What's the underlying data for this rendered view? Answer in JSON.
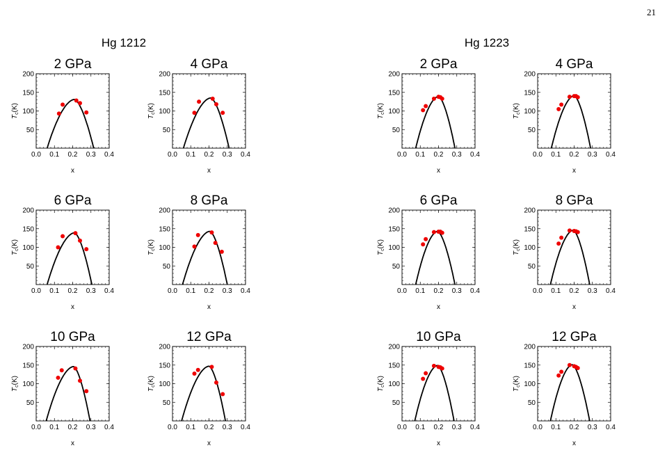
{
  "page_number": "21",
  "groups": [
    {
      "title": "Hg 1212"
    },
    {
      "title": "Hg 1223"
    }
  ],
  "chart_data": [
    {
      "group": "Hg 1212",
      "type": "scatter",
      "title": "2 GPa",
      "xlabel": "x",
      "ylabel": "T_c(K)",
      "xlim": [
        0,
        0.4
      ],
      "ylim": [
        0,
        200
      ],
      "xticks": [
        0.0,
        0.1,
        0.2,
        0.3,
        0.4
      ],
      "yticks": [
        50,
        100,
        150,
        200
      ],
      "points": {
        "x": [
          0.125,
          0.145,
          0.22,
          0.24,
          0.275
        ],
        "y": [
          93,
          117,
          128,
          121,
          96
        ]
      },
      "curve": {
        "x0": 0.06,
        "xpeak": 0.21,
        "x1": 0.315,
        "ymax": 131
      }
    },
    {
      "group": "Hg 1212",
      "type": "scatter",
      "title": "4 GPa",
      "xlabel": "x",
      "ylabel": "T_c(K)",
      "xlim": [
        0,
        0.4
      ],
      "ylim": [
        0,
        200
      ],
      "xticks": [
        0.0,
        0.1,
        0.2,
        0.3,
        0.4
      ],
      "yticks": [
        50,
        100,
        150,
        200
      ],
      "points": {
        "x": [
          0.12,
          0.145,
          0.22,
          0.24,
          0.275
        ],
        "y": [
          95,
          125,
          133,
          118,
          95
        ]
      },
      "curve": {
        "x0": 0.06,
        "xpeak": 0.21,
        "x1": 0.31,
        "ymax": 135
      }
    },
    {
      "group": "Hg 1212",
      "type": "scatter",
      "title": "6 GPa",
      "xlabel": "x",
      "ylabel": "T_c(K)",
      "xlim": [
        0,
        0.4
      ],
      "ylim": [
        0,
        200
      ],
      "xticks": [
        0.0,
        0.1,
        0.2,
        0.3,
        0.4
      ],
      "yticks": [
        50,
        100,
        150,
        200
      ],
      "points": {
        "x": [
          0.12,
          0.145,
          0.215,
          0.24,
          0.275
        ],
        "y": [
          100,
          130,
          138,
          118,
          95
        ]
      },
      "curve": {
        "x0": 0.06,
        "xpeak": 0.21,
        "x1": 0.305,
        "ymax": 139
      }
    },
    {
      "group": "Hg 1212",
      "type": "scatter",
      "title": "8 GPa",
      "xlabel": "x",
      "ylabel": "T_c(K)",
      "xlim": [
        0,
        0.4
      ],
      "ylim": [
        0,
        200
      ],
      "xticks": [
        0.0,
        0.1,
        0.2,
        0.3,
        0.4
      ],
      "yticks": [
        50,
        100,
        150,
        200
      ],
      "points": {
        "x": [
          0.12,
          0.14,
          0.215,
          0.235,
          0.27
        ],
        "y": [
          102,
          133,
          140,
          112,
          88
        ]
      },
      "curve": {
        "x0": 0.055,
        "xpeak": 0.205,
        "x1": 0.3,
        "ymax": 143
      }
    },
    {
      "group": "Hg 1212",
      "type": "scatter",
      "title": "10 GPa",
      "xlabel": "x",
      "ylabel": "T_c(K)",
      "xlim": [
        0,
        0.4
      ],
      "ylim": [
        0,
        200
      ],
      "xticks": [
        0.0,
        0.1,
        0.2,
        0.3,
        0.4
      ],
      "yticks": [
        50,
        100,
        150,
        200
      ],
      "points": {
        "x": [
          0.12,
          0.14,
          0.215,
          0.24,
          0.275
        ],
        "y": [
          116,
          136,
          141,
          108,
          80
        ]
      },
      "curve": {
        "x0": 0.055,
        "xpeak": 0.205,
        "x1": 0.295,
        "ymax": 146
      }
    },
    {
      "group": "Hg 1212",
      "type": "scatter",
      "title": "12 GPa",
      "xlabel": "x",
      "ylabel": "T_c(K)",
      "xlim": [
        0,
        0.4
      ],
      "ylim": [
        0,
        200
      ],
      "xticks": [
        0.0,
        0.1,
        0.2,
        0.3,
        0.4
      ],
      "yticks": [
        50,
        100,
        150,
        200
      ],
      "points": {
        "x": [
          0.12,
          0.14,
          0.215,
          0.24,
          0.275
        ],
        "y": [
          127,
          137,
          145,
          103,
          72
        ]
      },
      "curve": {
        "x0": 0.05,
        "xpeak": 0.2,
        "x1": 0.29,
        "ymax": 147
      }
    },
    {
      "group": "Hg 1223",
      "type": "scatter",
      "title": "2 GPa",
      "xlabel": "x",
      "ylabel": "T_c(K)",
      "xlim": [
        0,
        0.4
      ],
      "ylim": [
        0,
        200
      ],
      "xticks": [
        0.0,
        0.1,
        0.2,
        0.3,
        0.4
      ],
      "yticks": [
        50,
        100,
        150,
        200
      ],
      "points": {
        "x": [
          0.115,
          0.13,
          0.175,
          0.2,
          0.21,
          0.22
        ],
        "y": [
          102,
          113,
          133,
          138,
          137,
          133
        ]
      },
      "curve": {
        "x0": 0.075,
        "xpeak": 0.2,
        "x1": 0.29,
        "ymax": 139
      }
    },
    {
      "group": "Hg 1223",
      "type": "scatter",
      "title": "4 GPa",
      "xlabel": "x",
      "ylabel": "T_c(K)",
      "xlim": [
        0,
        0.4
      ],
      "ylim": [
        0,
        200
      ],
      "xticks": [
        0.0,
        0.1,
        0.2,
        0.3,
        0.4
      ],
      "yticks": [
        50,
        100,
        150,
        200
      ],
      "points": {
        "x": [
          0.115,
          0.13,
          0.175,
          0.2,
          0.21,
          0.22
        ],
        "y": [
          105,
          117,
          138,
          140,
          140,
          137
        ]
      },
      "curve": {
        "x0": 0.075,
        "xpeak": 0.2,
        "x1": 0.29,
        "ymax": 141
      }
    },
    {
      "group": "Hg 1223",
      "type": "scatter",
      "title": "6 GPa",
      "xlabel": "x",
      "ylabel": "T_c(K)",
      "xlim": [
        0,
        0.4
      ],
      "ylim": [
        0,
        200
      ],
      "xticks": [
        0.0,
        0.1,
        0.2,
        0.3,
        0.4
      ],
      "yticks": [
        50,
        100,
        150,
        200
      ],
      "points": {
        "x": [
          0.115,
          0.13,
          0.175,
          0.2,
          0.21,
          0.22
        ],
        "y": [
          108,
          122,
          141,
          142,
          142,
          139
        ]
      },
      "curve": {
        "x0": 0.075,
        "xpeak": 0.195,
        "x1": 0.29,
        "ymax": 143
      }
    },
    {
      "group": "Hg 1223",
      "type": "scatter",
      "title": "8 GPa",
      "xlabel": "x",
      "ylabel": "T_c(K)",
      "xlim": [
        0,
        0.4
      ],
      "ylim": [
        0,
        200
      ],
      "xticks": [
        0.0,
        0.1,
        0.2,
        0.3,
        0.4
      ],
      "yticks": [
        50,
        100,
        150,
        200
      ],
      "points": {
        "x": [
          0.115,
          0.13,
          0.175,
          0.2,
          0.21,
          0.22
        ],
        "y": [
          110,
          126,
          145,
          144,
          143,
          141
        ]
      },
      "curve": {
        "x0": 0.07,
        "xpeak": 0.195,
        "x1": 0.285,
        "ymax": 146
      }
    },
    {
      "group": "Hg 1223",
      "type": "scatter",
      "title": "10 GPa",
      "xlabel": "x",
      "ylabel": "T_c(K)",
      "xlim": [
        0,
        0.4
      ],
      "ylim": [
        0,
        200
      ],
      "xticks": [
        0.0,
        0.1,
        0.2,
        0.3,
        0.4
      ],
      "yticks": [
        50,
        100,
        150,
        200
      ],
      "points": {
        "x": [
          0.115,
          0.13,
          0.175,
          0.2,
          0.21,
          0.22
        ],
        "y": [
          113,
          128,
          148,
          145,
          144,
          141
        ]
      },
      "curve": {
        "x0": 0.07,
        "xpeak": 0.195,
        "x1": 0.285,
        "ymax": 149
      }
    },
    {
      "group": "Hg 1223",
      "type": "scatter",
      "title": "12 GPa",
      "xlabel": "x",
      "ylabel": "T_c(K)",
      "xlim": [
        0,
        0.4
      ],
      "ylim": [
        0,
        200
      ],
      "xticks": [
        0.0,
        0.1,
        0.2,
        0.3,
        0.4
      ],
      "yticks": [
        50,
        100,
        150,
        200
      ],
      "points": {
        "x": [
          0.115,
          0.13,
          0.175,
          0.2,
          0.21,
          0.22
        ],
        "y": [
          122,
          132,
          150,
          147,
          145,
          142
        ]
      },
      "curve": {
        "x0": 0.07,
        "xpeak": 0.19,
        "x1": 0.285,
        "ymax": 151
      }
    }
  ],
  "colors": {
    "points": "#ee0000",
    "curve": "#000000",
    "frame": "#000000"
  }
}
